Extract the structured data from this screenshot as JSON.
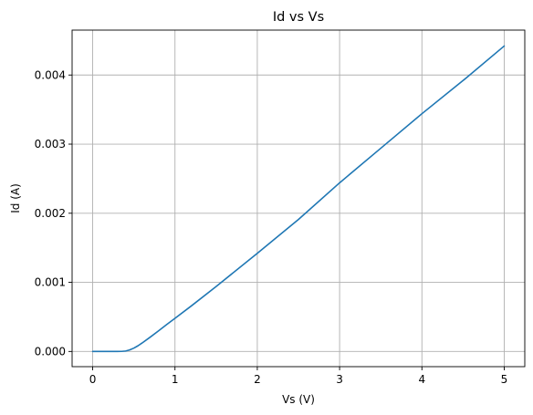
{
  "chart_data": {
    "type": "line",
    "title": "Id vs Vs",
    "xlabel": "Vs (V)",
    "ylabel": "Id (A)",
    "xlim": [
      -0.25,
      5.25
    ],
    "ylim": [
      -0.00022,
      0.00465
    ],
    "xticks": [
      0,
      1,
      2,
      3,
      4,
      5
    ],
    "xtick_labels": [
      "0",
      "1",
      "2",
      "3",
      "4",
      "5"
    ],
    "yticks": [
      0.0,
      0.001,
      0.002,
      0.003,
      0.004
    ],
    "ytick_labels": [
      "0.000",
      "0.001",
      "0.002",
      "0.003",
      "0.004"
    ],
    "grid": true,
    "series": [
      {
        "color": "#1f77b4",
        "x": [
          0,
          0.1,
          0.2,
          0.3,
          0.35,
          0.4,
          0.45,
          0.5,
          0.55,
          0.6,
          0.7,
          0.8,
          0.9,
          1.0,
          1.2,
          1.5,
          2.0,
          2.5,
          3.0,
          3.5,
          4.0,
          4.5,
          5.0
        ],
        "y": [
          0,
          0,
          0,
          0,
          1e-06,
          6e-06,
          2.2e-05,
          4.8e-05,
          8.2e-05,
          0.000122,
          0.000208,
          0.000298,
          0.00039,
          0.00048,
          0.00066,
          0.00094,
          0.00142,
          0.00191,
          0.00244,
          0.00294,
          0.00344,
          0.00392,
          0.00442
        ]
      }
    ]
  }
}
